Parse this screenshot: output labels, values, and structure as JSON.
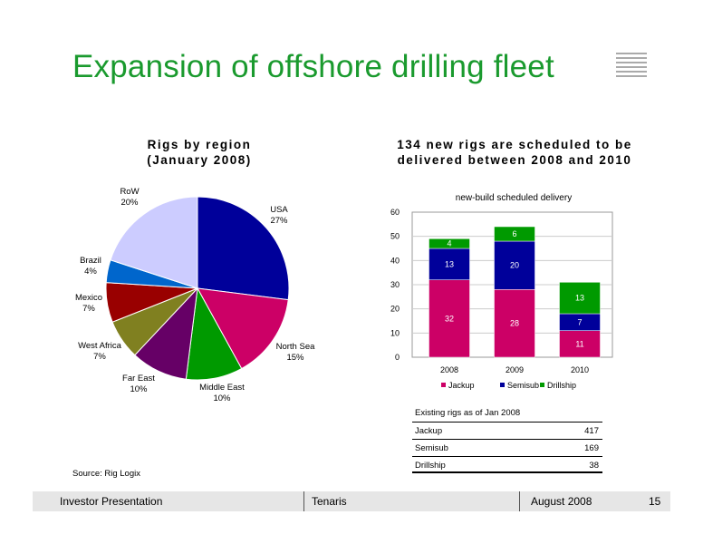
{
  "title": "Expansion of offshore drilling fleet",
  "left_heading_line1": "Rigs by region",
  "left_heading_line2": "(January 2008)",
  "right_heading_line1": "134 new rigs are scheduled to be",
  "right_heading_line2": "delivered between 2008 and 2010",
  "source": "Source: Rig Logix",
  "footer": {
    "left": "Investor Presentation",
    "center": "Tenaris",
    "date": "August 2008",
    "page": "15"
  },
  "rig_table": {
    "header": "Existing rigs as of Jan 2008",
    "rows": [
      {
        "label": "Jackup",
        "value": "417"
      },
      {
        "label": "Semisub",
        "value": "169"
      },
      {
        "label": "Drillship",
        "value": "38"
      }
    ]
  },
  "chart_data": [
    {
      "type": "pie",
      "slices": [
        {
          "label": "USA",
          "pct": "27%",
          "value": 27,
          "color": "#00009a"
        },
        {
          "label": "North Sea",
          "pct": "15%",
          "value": 15,
          "color": "#cc0066"
        },
        {
          "label": "Middle East",
          "pct": "10%",
          "value": 10,
          "color": "#009a00"
        },
        {
          "label": "Far East",
          "pct": "10%",
          "value": 10,
          "color": "#660066"
        },
        {
          "label": "West Africa",
          "pct": "7%",
          "value": 7,
          "color": "#808020"
        },
        {
          "label": "Mexico",
          "pct": "7%",
          "value": 7,
          "color": "#990000"
        },
        {
          "label": "Brazil",
          "pct": "4%",
          "value": 4,
          "color": "#0066cc"
        },
        {
          "label": "RoW",
          "pct": "20%",
          "value": 20,
          "color": "#ccccff"
        }
      ]
    },
    {
      "type": "bar",
      "stacked": true,
      "title": "new-build scheduled delivery",
      "categories": [
        "2008",
        "2009",
        "2010"
      ],
      "ylim": [
        0,
        60
      ],
      "yticks": [
        "0",
        "10",
        "20",
        "30",
        "40",
        "50",
        "60"
      ],
      "series": [
        {
          "name": "Jackup",
          "values": [
            32,
            28,
            11
          ],
          "color": "#cc0066"
        },
        {
          "name": "Semisub",
          "values": [
            13,
            20,
            7
          ],
          "color": "#00009a"
        },
        {
          "name": "Drillship",
          "values": [
            4,
            6,
            13
          ],
          "color": "#009a00"
        }
      ],
      "legend_position": "bottom"
    }
  ]
}
